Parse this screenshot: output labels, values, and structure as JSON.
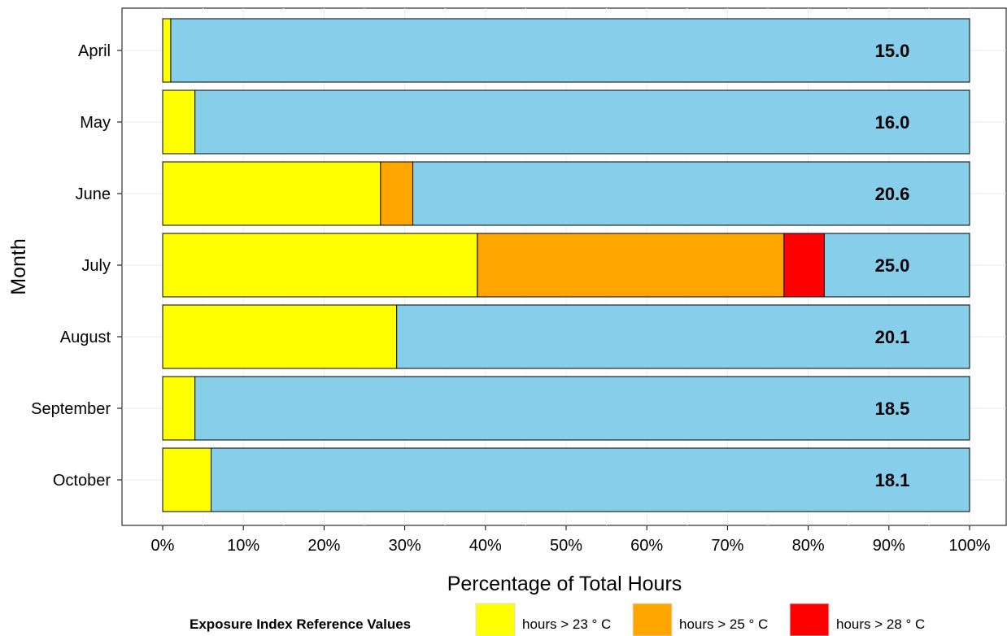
{
  "chart_data": {
    "type": "bar",
    "orientation": "horizontal",
    "stacked": true,
    "categories": [
      "April",
      "May",
      "June",
      "July",
      "August",
      "September",
      "October"
    ],
    "series": [
      {
        "name": "hours > 23 ° C",
        "color": "#ffff00",
        "values": [
          1,
          4,
          27,
          39,
          29,
          4,
          6
        ]
      },
      {
        "name": "hours > 25 ° C",
        "color": "#ffa500",
        "values": [
          0,
          0,
          4,
          38,
          0,
          0,
          0
        ]
      },
      {
        "name": "hours > 28 ° C",
        "color": "#ff0000",
        "values": [
          0,
          0,
          0,
          5,
          0,
          0,
          0
        ]
      },
      {
        "color": "#87ceeb",
        "values": [
          99,
          96,
          69,
          18,
          71,
          96,
          94
        ]
      }
    ],
    "bar_labels": [
      "15.0",
      "16.0",
      "20.6",
      "25.0",
      "20.1",
      "18.5",
      "18.1"
    ],
    "xlim": [
      0,
      100
    ],
    "x_ticks": [
      0,
      10,
      20,
      30,
      40,
      50,
      60,
      70,
      80,
      90,
      100
    ],
    "x_tick_labels": [
      "0%",
      "10%",
      "20%",
      "30%",
      "40%",
      "50%",
      "60%",
      "70%",
      "80%",
      "90%",
      "100%"
    ],
    "xlabel": "Percentage of Total Hours",
    "ylabel": "Month",
    "grid": true,
    "legend": {
      "title": "Exposure Index Reference Values",
      "position": "bottom",
      "items": [
        "hours > 23 ° C",
        "hours > 25 ° C",
        "hours > 28 ° C"
      ],
      "colors": [
        "#ffff00",
        "#ffa500",
        "#ff0000"
      ]
    }
  }
}
